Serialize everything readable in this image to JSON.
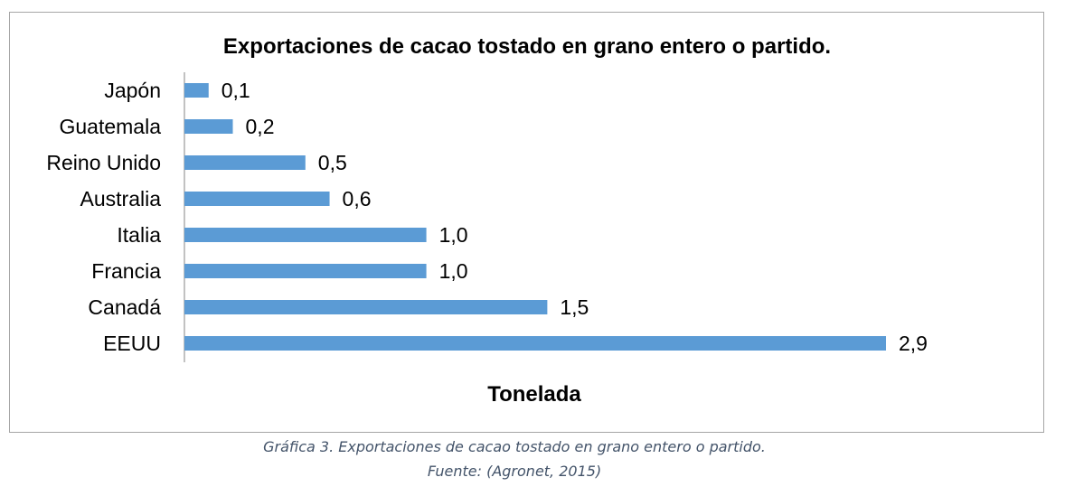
{
  "chart_data": {
    "type": "bar",
    "orientation": "horizontal",
    "title": "Exportaciones de cacao tostado en grano entero o partido.",
    "xlabel": "Tonelada",
    "ylabel": "",
    "categories": [
      "Japón",
      "Guatemala",
      "Reino Unido",
      "Australia",
      "Italia",
      "Francia",
      "Canadá",
      "EEUU"
    ],
    "values": [
      0.1,
      0.2,
      0.5,
      0.6,
      1.0,
      1.0,
      1.5,
      2.9
    ],
    "value_labels": [
      "0,1",
      "0,2",
      "0,5",
      "0,6",
      "1,0",
      "1,0",
      "1,5",
      "2,9"
    ],
    "xlim": [
      0,
      2.9
    ],
    "grid": false,
    "legend": "none",
    "bar_color": "#5b9bd5"
  },
  "caption": {
    "line1": "Gráfica 3. Exportaciones de cacao tostado en grano entero o partido.",
    "line2": "Fuente: (Agronet, 2015)"
  },
  "colors": {
    "frame_border": "#a6a6a6",
    "caption_text": "#44546a",
    "axis_line": "#868686"
  }
}
